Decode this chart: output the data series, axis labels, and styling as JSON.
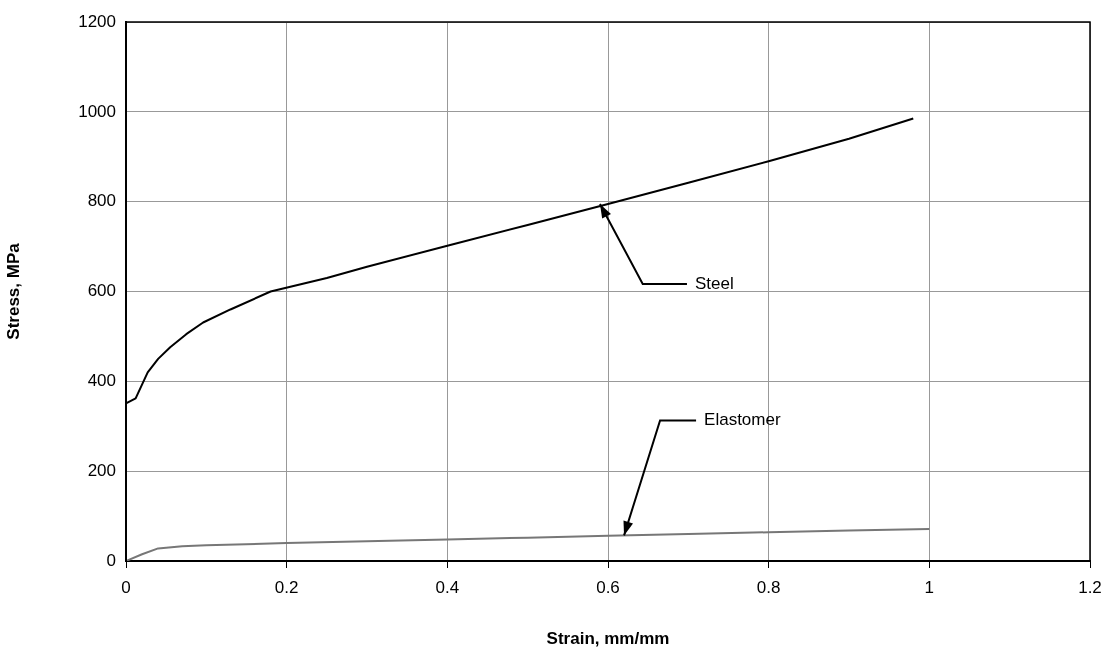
{
  "chart_data": {
    "type": "line",
    "xlabel": "Strain, mm/mm",
    "ylabel": "Stress, MPa",
    "xlim": [
      0,
      1.2
    ],
    "xticks": [
      0,
      0.2,
      0.4,
      0.6,
      0.8,
      1,
      1.2
    ],
    "ylim": [
      0,
      1200
    ],
    "yticks": [
      0,
      200,
      400,
      600,
      800,
      1000,
      1200
    ],
    "grid": true,
    "legend": false,
    "marker": "none",
    "line_style": "solid",
    "series": [
      {
        "color": "#000000",
        "x": [
          0,
          0,
          0.012,
          0.027,
          0.04,
          0.055,
          0.075,
          0.096,
          0.13,
          0.18,
          0.25,
          0.3,
          0.4,
          0.5,
          0.6,
          0.7,
          0.8,
          0.9,
          0.98
        ],
        "values": [
          0,
          351,
          362,
          420,
          450,
          476,
          505,
          531,
          560,
          600,
          630,
          655,
          702,
          748,
          795,
          842,
          890,
          940,
          985
        ]
      },
      {
        "color": "#777777",
        "x": [
          0,
          0.02,
          0.04,
          0.07,
          0.1,
          0.2,
          0.3,
          0.4,
          0.5,
          0.6,
          0.7,
          0.8,
          0.9,
          1.0
        ],
        "values": [
          0,
          15,
          28,
          33,
          35,
          40,
          44,
          48,
          52,
          56,
          60,
          64,
          68,
          71
        ]
      }
    ],
    "annotations": [
      {
        "text": "Steel",
        "x": 0.59,
        "y": 795
      },
      {
        "text": "Elastomer",
        "x": 0.62,
        "y": 57
      }
    ]
  }
}
